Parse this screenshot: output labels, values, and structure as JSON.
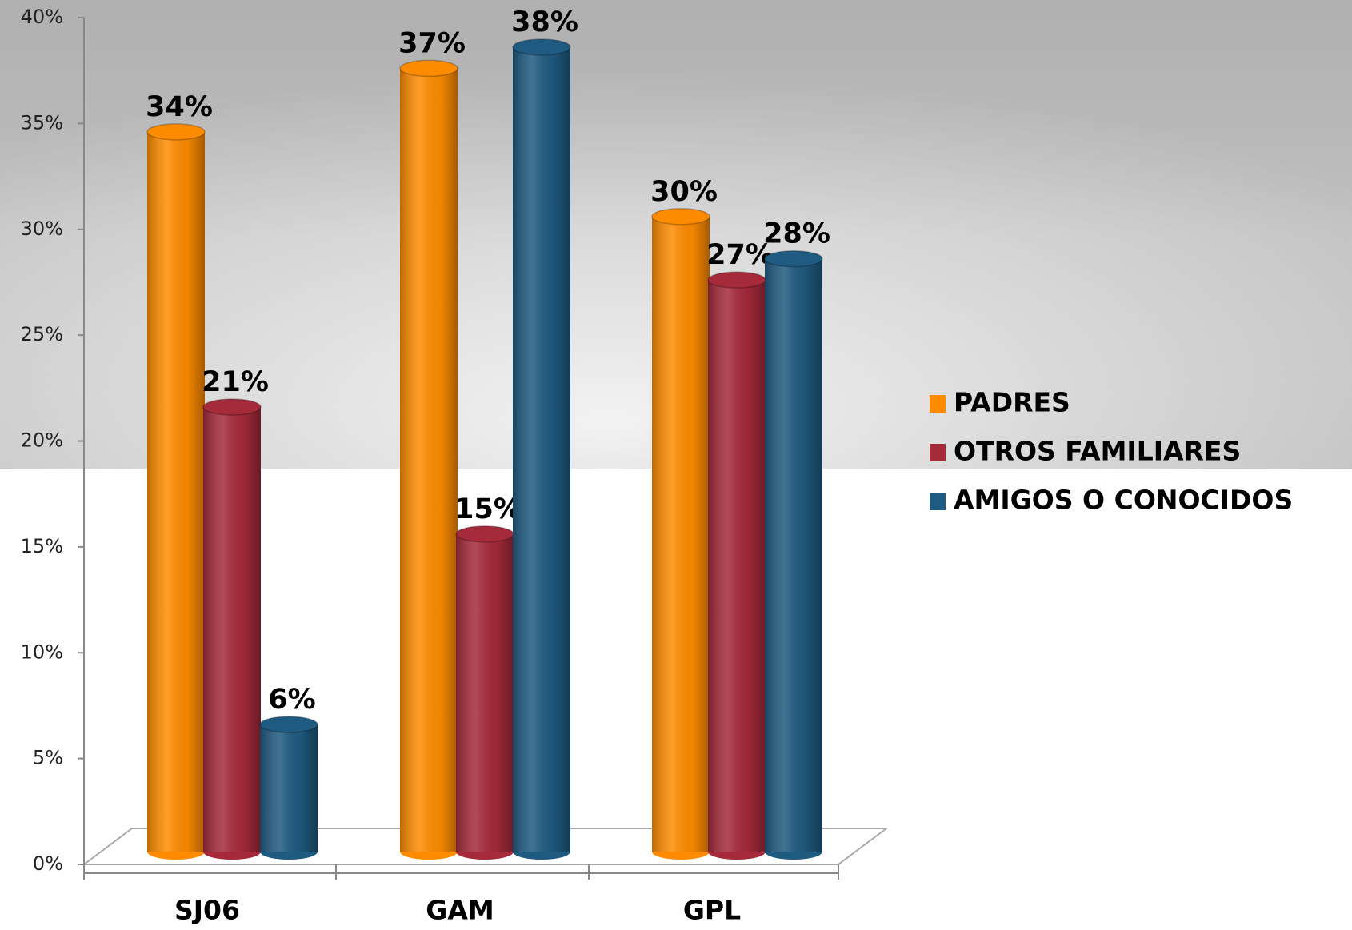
{
  "chart_data": {
    "type": "bar",
    "categories": [
      "SJ06",
      "GAM",
      "GPL"
    ],
    "series": [
      {
        "name": "PADRES",
        "color": "#ff8c00",
        "values": [
          34,
          37,
          30
        ],
        "value_labels": [
          "34%",
          "37%",
          "30%"
        ]
      },
      {
        "name": "OTROS FAMILIARES",
        "color": "#a52a3a",
        "values": [
          21,
          15,
          27
        ],
        "value_labels": [
          "21%",
          "15%",
          "27%"
        ]
      },
      {
        "name": "AMIGOS O CONOCIDOS",
        "color": "#1f5a80",
        "values": [
          6,
          38,
          28
        ],
        "value_labels": [
          "6%",
          "38%",
          "28%"
        ]
      }
    ],
    "ylim": [
      0,
      40
    ],
    "yticks": [
      {
        "value": 0,
        "label": "0%"
      },
      {
        "value": 5,
        "label": "5%"
      },
      {
        "value": 10,
        "label": "10%"
      },
      {
        "value": 15,
        "label": "15%"
      },
      {
        "value": 20,
        "label": "20%"
      },
      {
        "value": 25,
        "label": "25%"
      },
      {
        "value": 30,
        "label": "30%"
      },
      {
        "value": 35,
        "label": "35%"
      },
      {
        "value": 40,
        "label": "40%"
      }
    ],
    "legend": "right"
  }
}
